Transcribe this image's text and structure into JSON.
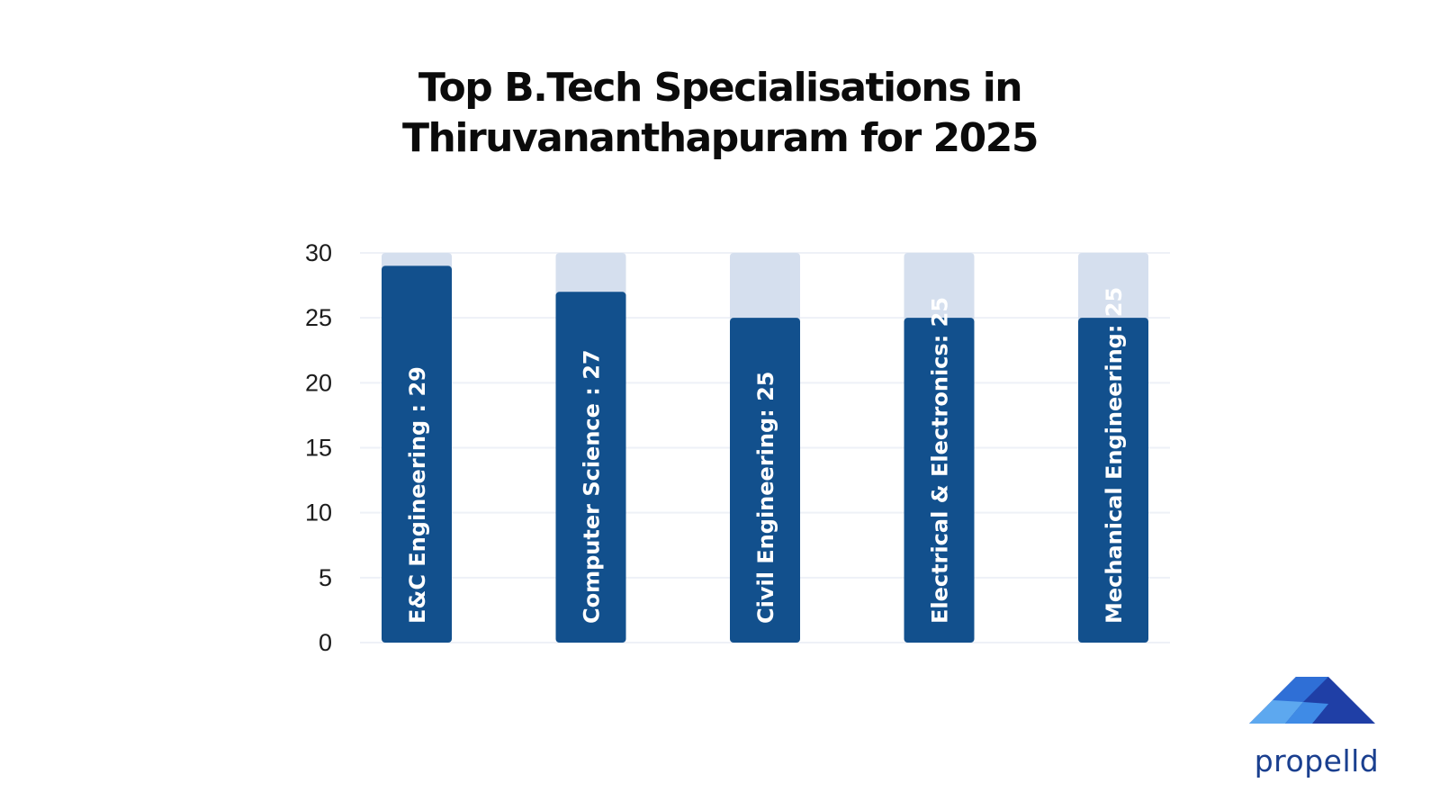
{
  "chart_data": {
    "type": "bar",
    "title_lines": [
      "Top B.Tech Specialisations in",
      "Thiruvananthapuram for 2025"
    ],
    "categories": [
      "E&C Engineering",
      "Computer Science",
      "Civil Engineering",
      "Electrical & Electronics",
      "Mechanical Engineering"
    ],
    "values": [
      29,
      27,
      25,
      25,
      25
    ],
    "bar_labels": [
      "E&C Engineering : 29",
      "Computer Science : 27",
      "Civil Engineering: 25",
      "Electrical & Electronics: 25",
      "Mechanical Engineering: 25"
    ],
    "y_ticks": [
      0,
      5,
      10,
      15,
      20,
      25,
      30
    ],
    "ylim": [
      0,
      30
    ],
    "grid": true,
    "colors": {
      "bar": "#12508d",
      "bar_background": "#d5dfee",
      "grid": "#eef1f7"
    }
  },
  "logo": {
    "text": "propelld",
    "icon": "propelld-triangle-logo",
    "colors": [
      "#1f3fa6",
      "#2f6fd6",
      "#5da8ef"
    ]
  }
}
